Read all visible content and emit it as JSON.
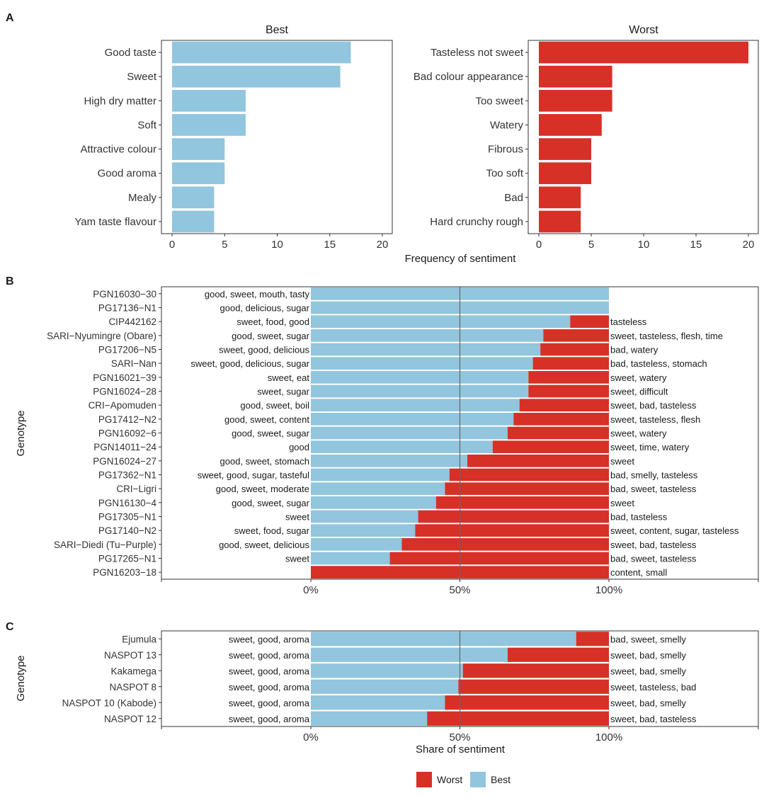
{
  "colors": {
    "best": "#92c5de",
    "worst": "#d73027",
    "frame": "#333333",
    "midline": "#666666"
  },
  "chart_data": [
    {
      "panel": "A",
      "type": "bar",
      "orientation": "horizontal",
      "facet": "Best",
      "categories": [
        "Good taste",
        "Sweet",
        "High dry matter",
        "Soft",
        "Attractive colour",
        "Good aroma",
        "Mealy",
        "Yam taste flavour"
      ],
      "values": [
        17,
        16,
        7,
        7,
        5,
        5,
        4,
        4
      ],
      "xlim": [
        0,
        20
      ],
      "xticks": [
        "0",
        "5",
        "10",
        "15",
        "20"
      ],
      "xlabel": "Frequency of sentiment"
    },
    {
      "panel": "A",
      "type": "bar",
      "orientation": "horizontal",
      "facet": "Worst",
      "categories": [
        "Tasteless not sweet",
        "Bad colour appearance",
        "Too sweet",
        "Watery",
        "Fibrous",
        "Too soft",
        "Bad",
        "Hard crunchy rough"
      ],
      "values": [
        20,
        7,
        7,
        6,
        5,
        5,
        4,
        4
      ],
      "xlim": [
        0,
        20
      ],
      "xticks": [
        "0",
        "5",
        "10",
        "15",
        "20"
      ],
      "xlabel": "Frequency of sentiment"
    },
    {
      "panel": "B",
      "type": "bar",
      "stacked": true,
      "orientation": "horizontal",
      "ylabel": "Genotype",
      "xticks": [
        "0%",
        "50%",
        "100%"
      ],
      "categories": [
        "PGN16030−30",
        "PG17136−N1",
        "CIP442162",
        "SARI−Nyumingre (Obare)",
        "PG17206−N5",
        "SARI−Nan",
        "PGN16021−39",
        "PGN16024−28",
        "CRI−Apomuden",
        "PG17412−N2",
        "PGN16092−6",
        "PGN14011−24",
        "PGN16024−27",
        "PG17362−N1",
        "CRI−Ligri",
        "PGN16130−4",
        "PG17305−N1",
        "PG17140−N2",
        "SARI−Diedi (Tu−Purple)",
        "PG17265−N1",
        "PGN16203−18"
      ],
      "best_share": [
        100,
        100,
        87,
        78,
        77,
        74.5,
        73,
        73,
        70,
        68,
        66,
        61,
        52.5,
        46.5,
        45,
        42,
        36,
        35,
        30.5,
        26.5,
        0
      ],
      "best_words": [
        "good, sweet, mouth, tasty",
        "good, delicious, sugar",
        "sweet, food, good",
        "good, sweet, sugar",
        "sweet, good, delicious",
        "sweet, good, delicious, sugar",
        "sweet, eat",
        "sweet, sugar",
        "good, sweet, boil",
        "good, sweet, content",
        "good, sweet, sugar",
        "good",
        "good, sweet, stomach",
        "sweet, good, sugar, tasteful",
        "good, sweet, moderate",
        "good, sweet, sugar",
        "sweet",
        "sweet, food, sugar",
        "good, sweet, delicious",
        "sweet",
        ""
      ],
      "worst_words": [
        "",
        "",
        "tasteless",
        "sweet, tasteless, flesh, time",
        "bad, watery",
        "bad, tasteless, stomach",
        "sweet, watery",
        "sweet, difficult",
        "sweet, bad, tasteless",
        "sweet, tasteless, flesh",
        "sweet, watery",
        "sweet, time, watery",
        "sweet",
        "bad, smelly, tasteless",
        "bad, sweet, tasteless",
        "sweet",
        "bad, tasteless",
        "sweet, content, sugar, tasteless",
        "sweet, bad, tasteless",
        "bad, sweet, tasteless",
        "content, small"
      ]
    },
    {
      "panel": "C",
      "type": "bar",
      "stacked": true,
      "orientation": "horizontal",
      "ylabel": "Genotype",
      "xlabel": "Share of sentiment",
      "xticks": [
        "0%",
        "50%",
        "100%"
      ],
      "categories": [
        "Ejumula",
        "NASPOT 13",
        "Kakamega",
        "NASPOT 8",
        "NASPOT 10 (Kabode)",
        "NASPOT 12"
      ],
      "best_share": [
        89,
        66,
        51,
        49.5,
        45,
        39
      ],
      "best_words": [
        "sweet, good, aroma",
        "sweet, good, aroma",
        "sweet, good, aroma",
        "sweet, good, aroma",
        "sweet, good, aroma",
        "sweet, good, aroma"
      ],
      "worst_words": [
        "bad, sweet, smelly",
        "sweet, bad, smelly",
        "sweet, bad, smelly",
        "sweet, tasteless, bad",
        "sweet, bad, smelly",
        "sweet, bad, tasteless"
      ]
    }
  ],
  "legend": {
    "items": [
      {
        "label": "Worst",
        "key": "worst"
      },
      {
        "label": "Best",
        "key": "best"
      }
    ]
  }
}
